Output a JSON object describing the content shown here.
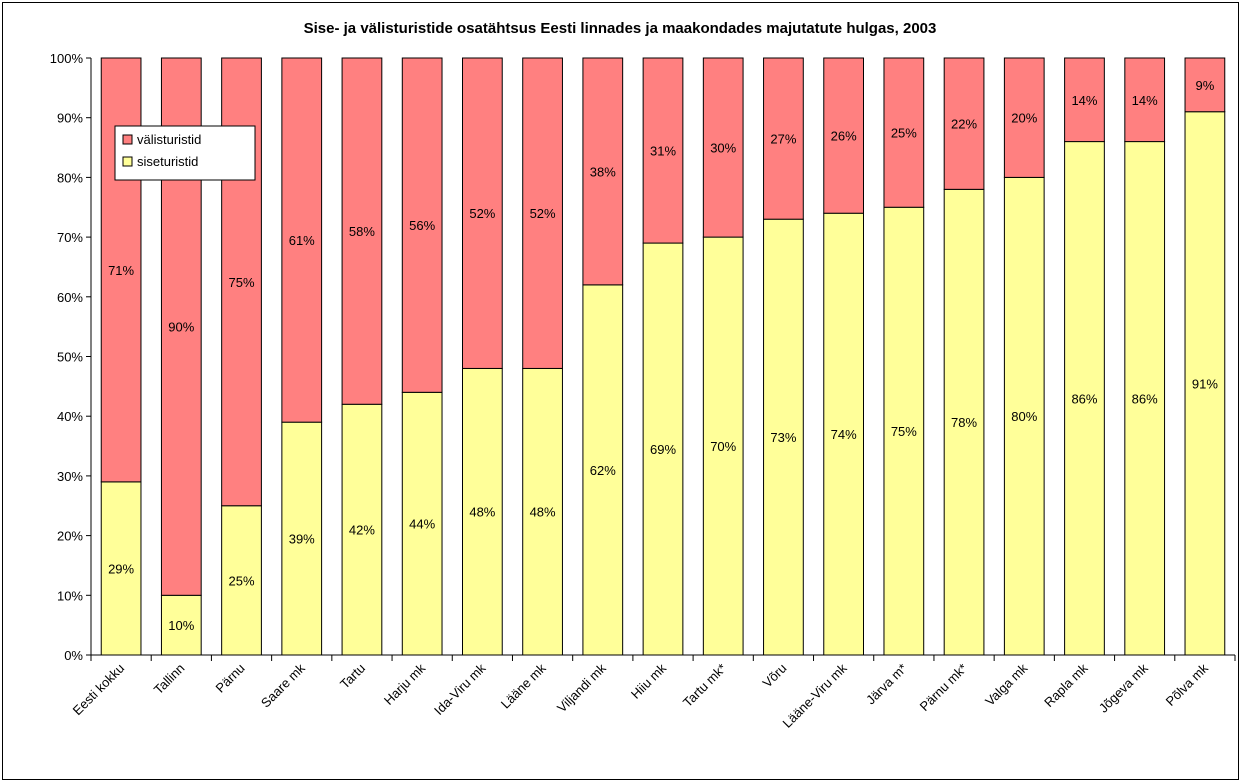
{
  "chart_data": {
    "type": "bar",
    "stacked": true,
    "percent_stacked": true,
    "title": "Sise- ja välisturistide osatähtsus Eesti linnades ja maakondades majutatute hulgas, 2003",
    "categories": [
      "Eesti kokku",
      "Tallinn",
      "Pärnu",
      "Saare mk",
      "Tartu",
      "Harju mk",
      "Ida-Viru mk",
      "Lääne mk",
      "Viljandi mk",
      "Hiiu mk",
      "Tartu mk*",
      "Võru",
      "Lääne-Viru mk",
      "Järva m*",
      "Pärnu mk*",
      "Valga mk",
      "Rapla mk",
      "Jõgeva mk",
      "Põlva mk"
    ],
    "series": [
      {
        "name": "siseturistid",
        "color": "#ffff99",
        "values": [
          29,
          10,
          25,
          39,
          42,
          44,
          48,
          48,
          62,
          69,
          70,
          73,
          74,
          75,
          78,
          80,
          86,
          86,
          91
        ]
      },
      {
        "name": "välisturistid",
        "color": "#ff8080",
        "values": [
          71,
          90,
          75,
          61,
          58,
          56,
          52,
          52,
          38,
          31,
          30,
          27,
          26,
          25,
          22,
          20,
          14,
          14,
          9
        ]
      }
    ],
    "data_label_suffix": "%",
    "y_ticks": [
      "0%",
      "10%",
      "20%",
      "30%",
      "40%",
      "50%",
      "60%",
      "70%",
      "80%",
      "90%",
      "100%"
    ],
    "ylim": [
      0,
      100
    ],
    "legend": {
      "placement": "top-left",
      "entries": [
        "välisturistid",
        "siseturistid"
      ]
    },
    "grid": false
  }
}
